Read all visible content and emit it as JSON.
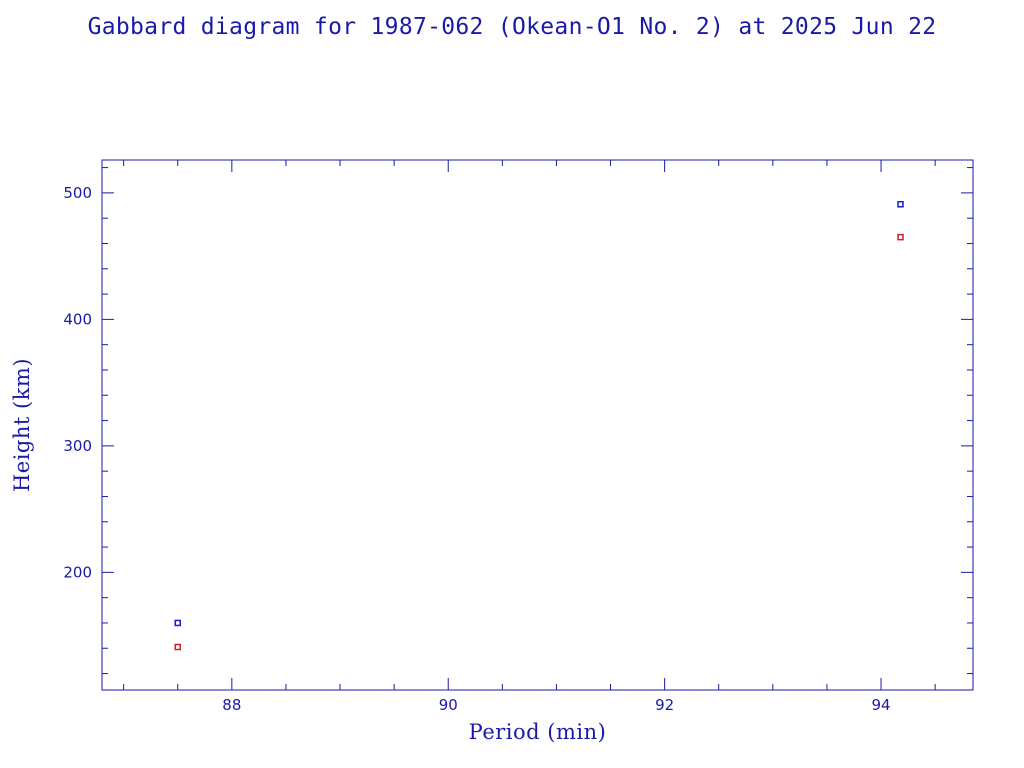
{
  "chart_data": {
    "type": "scatter",
    "title": "Gabbard diagram for 1987-062 (Okean-O1 No. 2) at 2025 Jun 22",
    "xlabel": "Period (min)",
    "ylabel": "Height (km)",
    "xlim": [
      86.8,
      94.85
    ],
    "ylim": [
      107,
      526
    ],
    "x_ticks": [
      88,
      90,
      92,
      94
    ],
    "y_ticks": [
      200,
      300,
      400,
      500
    ],
    "x_minor_step": 0.5,
    "y_minor_step": 20,
    "grid": false,
    "colors": {
      "axis": "#1a1aa8",
      "apogee": "#1a1ad0",
      "perigee": "#d42020"
    },
    "series": [
      {
        "values": [
          {
            "x": 87.5,
            "y": 160
          },
          {
            "x": 94.18,
            "y": 491
          }
        ],
        "color": "#1a1ad0"
      },
      {
        "values": [
          {
            "x": 87.5,
            "y": 141
          },
          {
            "x": 94.18,
            "y": 465
          }
        ],
        "color": "#d42020"
      }
    ]
  }
}
